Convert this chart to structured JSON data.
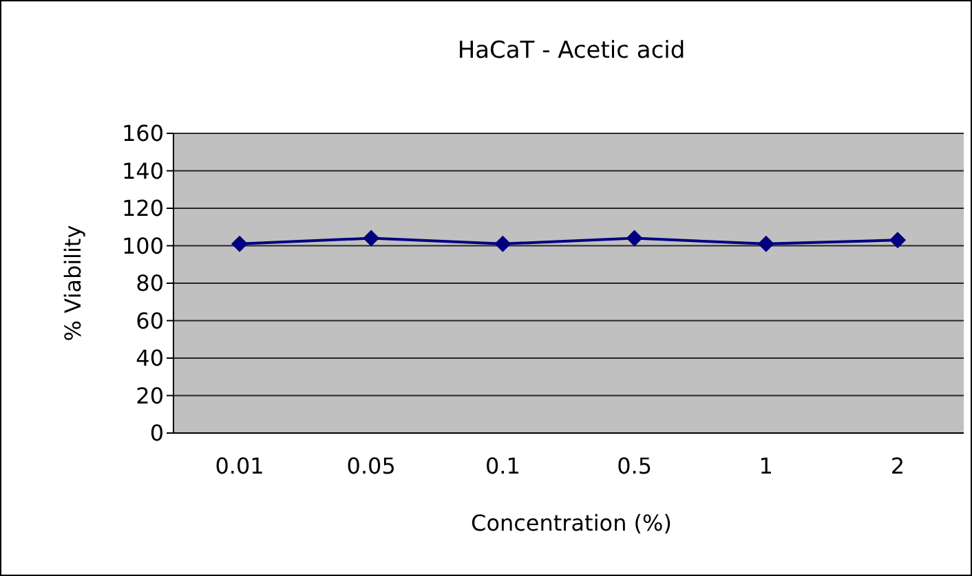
{
  "chart_data": {
    "type": "line",
    "title": "HaCaT - Acetic acid",
    "xlabel": "Concentration (%)",
    "ylabel": "% Viability",
    "categories": [
      "0.01",
      "0.05",
      "0.1",
      "0.5",
      "1",
      "2"
    ],
    "series": [
      {
        "color": "#000080",
        "values": [
          101,
          104,
          101,
          104,
          101,
          103
        ]
      }
    ],
    "ylim": [
      0,
      160
    ],
    "yticks": [
      0,
      20,
      40,
      60,
      80,
      100,
      120,
      140,
      160
    ],
    "grid": "y",
    "marker": "diamond",
    "line_style": "solid"
  }
}
